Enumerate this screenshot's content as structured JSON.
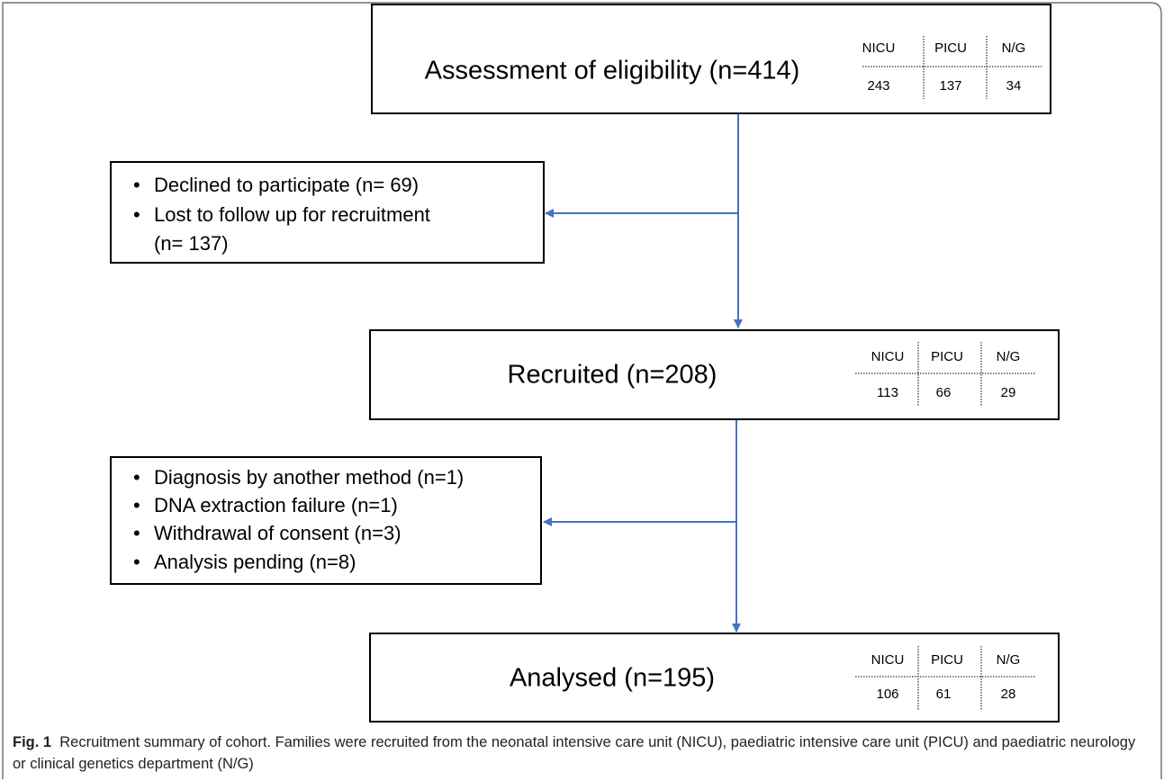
{
  "nodes": [
    {
      "label": "Assessment of eligibility (n=414)",
      "table": {
        "headers": [
          "NICU",
          "PICU",
          "N/G"
        ],
        "values": [
          "243",
          "137",
          "34"
        ]
      }
    },
    {
      "label": "Recruited (n=208)",
      "table": {
        "headers": [
          "NICU",
          "PICU",
          "N/G"
        ],
        "values": [
          "113",
          "66",
          "29"
        ]
      }
    },
    {
      "label": "Analysed (n=195)",
      "table": {
        "headers": [
          "NICU",
          "PICU",
          "N/G"
        ],
        "values": [
          "106",
          "61",
          "28"
        ]
      }
    }
  ],
  "exclusions": [
    {
      "items": [
        "Declined to participate (n= 69)",
        "Lost to follow up for recruitment",
        "(n= 137)"
      ]
    },
    {
      "items": [
        "Diagnosis by another method (n=1)",
        "DNA extraction failure (n=1)",
        "Withdrawal of consent (n=3)",
        "Analysis pending (n=8)"
      ]
    }
  ],
  "caption": {
    "label": "Fig. 1",
    "text": "Recruitment summary of cohort. Families were recruited from the neonatal intensive care unit (NICU), paediatric intensive care unit (PICU) and paediatric neurology or clinical genetics department (N/G)"
  }
}
